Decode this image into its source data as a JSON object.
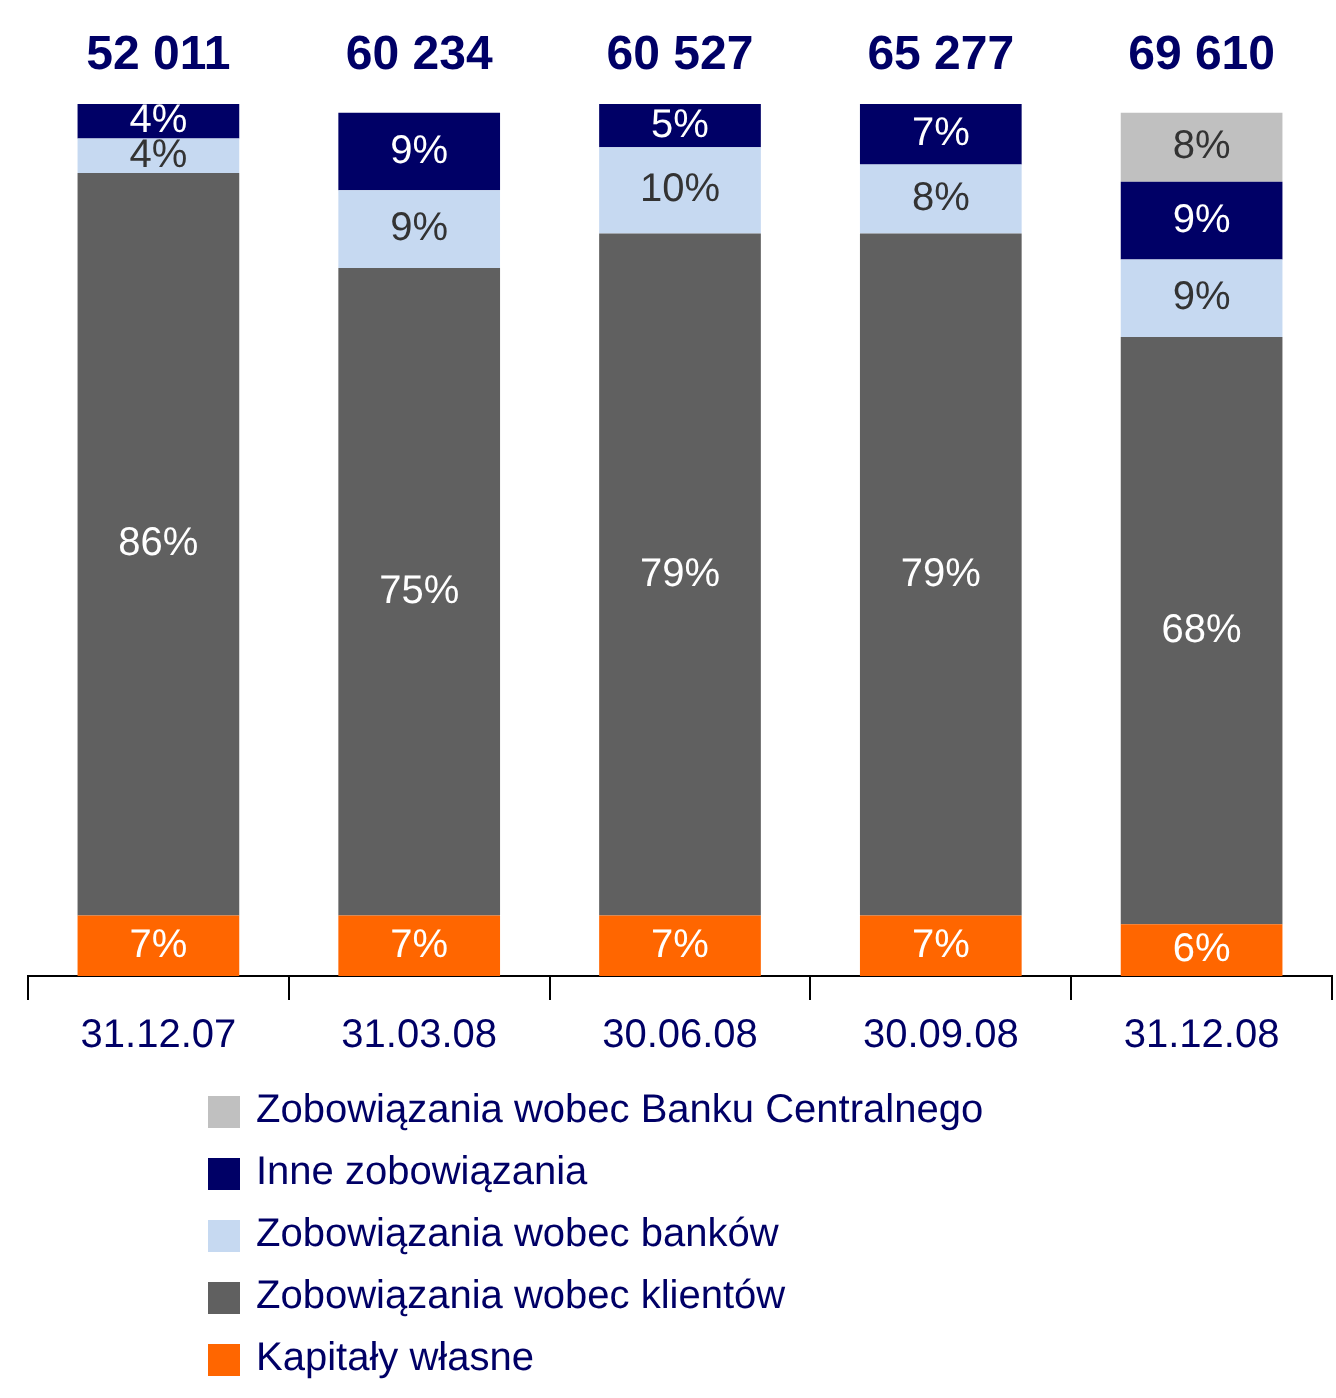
{
  "chart_data": {
    "type": "bar",
    "stacked": true,
    "categories": [
      "31.12.07",
      "31.03.08",
      "30.06.08",
      "30.09.08",
      "31.12.08"
    ],
    "series": [
      {
        "name": "Kapitały własne",
        "color": "#ff6600",
        "values": [
          7,
          7,
          7,
          7,
          6
        ],
        "value_labels": [
          "7%",
          "7%",
          "7%",
          "7%",
          "6%"
        ]
      },
      {
        "name": "Zobowiązania wobec klientów",
        "color": "#606060",
        "values": [
          86,
          75,
          79,
          79,
          68
        ],
        "value_labels": [
          "86%",
          "75%",
          "79%",
          "79%",
          "68%"
        ]
      },
      {
        "name": "Zobowiązania wobec banków",
        "color": "#c6d9f1",
        "values": [
          4,
          9,
          10,
          8,
          9
        ],
        "value_labels": [
          "4%",
          "9%",
          "10%",
          "8%",
          "9%"
        ]
      },
      {
        "name": "Inne zobowiązania",
        "color": "#000066",
        "values": [
          4,
          9,
          5,
          7,
          9
        ],
        "value_labels": [
          "4%",
          "9%",
          "5%",
          "7%",
          "9%"
        ]
      },
      {
        "name": "Zobowiązania wobec Banku Centralnego",
        "color": "#c0c0c0",
        "values": [
          null,
          null,
          null,
          null,
          8
        ],
        "value_labels": [
          null,
          null,
          null,
          null,
          "8%"
        ]
      }
    ],
    "annotations": [
      "52 011",
      "60 234",
      "60 527",
      "65 277",
      "69 610"
    ],
    "grid": false,
    "legend": "bottom"
  }
}
